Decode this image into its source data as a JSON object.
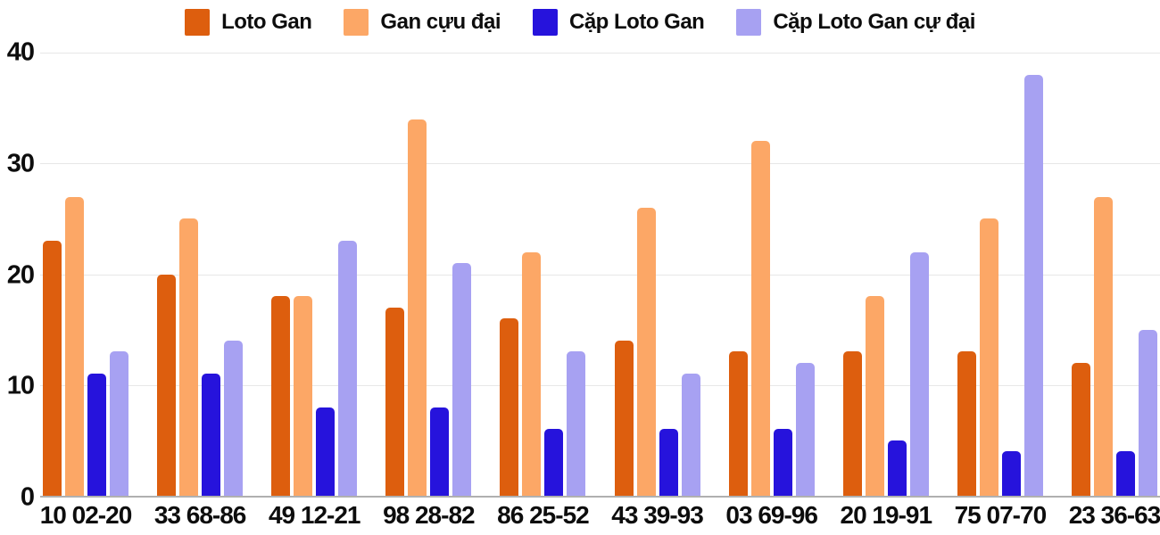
{
  "chart_data": {
    "type": "bar",
    "title": "",
    "xlabel": "",
    "ylabel": "",
    "ylim": [
      0,
      40
    ],
    "yticks": [
      0,
      10,
      20,
      30,
      40
    ],
    "grid": true,
    "legend_position": "top-center",
    "categories": [
      "10 02-20",
      "33 68-86",
      "49 12-21",
      "98 28-82",
      "86 25-52",
      "43 39-93",
      "03 69-96",
      "20 19-91",
      "75 07-70",
      "23 36-63"
    ],
    "series": [
      {
        "name": "Loto Gan",
        "color": "#dd5e0e",
        "values": [
          23,
          20,
          18,
          17,
          16,
          14,
          13,
          13,
          13,
          12
        ]
      },
      {
        "name": "Gan cựu đại",
        "color": "#fca766",
        "values": [
          27,
          25,
          18,
          34,
          22,
          26,
          32,
          18,
          25,
          27
        ]
      },
      {
        "name": "Cặp Loto Gan",
        "color": "#2613dc",
        "values": [
          11,
          11,
          8,
          8,
          6,
          6,
          6,
          5,
          4,
          4
        ]
      },
      {
        "name": "Cặp Loto Gan cự đại",
        "color": "#a7a1f2",
        "values": [
          13,
          14,
          23,
          21,
          13,
          11,
          12,
          22,
          38,
          15
        ]
      }
    ],
    "colors": {
      "gridline": "#e7e7e7",
      "axis_baseline": "#b0b0b0",
      "text": "#0d0d0d",
      "background": "#ffffff"
    }
  }
}
